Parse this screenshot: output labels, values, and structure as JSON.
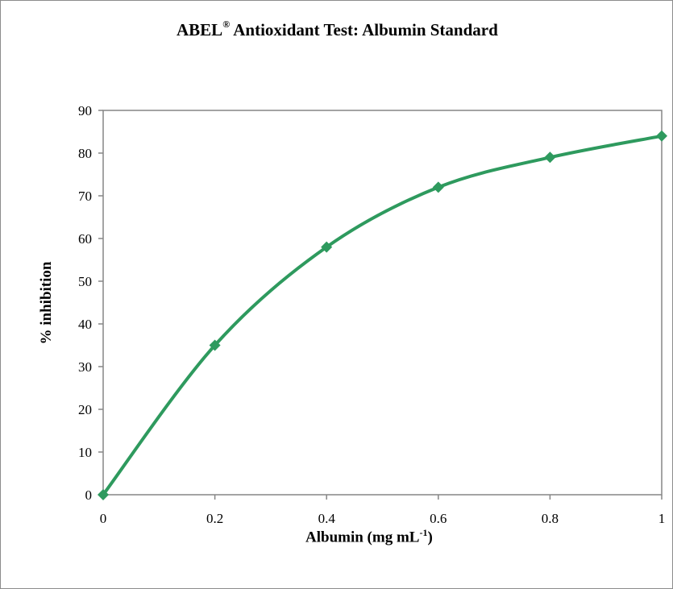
{
  "chart_data": {
    "type": "line",
    "title_main": "ABEL",
    "title_mark": "®",
    "title_rest": " Antioxidant Test: Albumin Standard",
    "xlabel_main": "Albumin (mg mL",
    "xlabel_sup": "-1",
    "xlabel_end": ")",
    "ylabel": "% inhibition",
    "x": [
      0,
      0.2,
      0.4,
      0.6,
      0.8,
      1
    ],
    "y": [
      0,
      35,
      58,
      72,
      79,
      84
    ],
    "xlim": [
      0,
      1
    ],
    "ylim": [
      0,
      90
    ],
    "xticks": [
      "0",
      "0.2",
      "0.4",
      "0.6",
      "0.8",
      "1"
    ],
    "yticks": [
      "0",
      "10",
      "20",
      "30",
      "40",
      "50",
      "60",
      "70",
      "80",
      "90"
    ],
    "series_color": "#2e9a5e",
    "grid": false,
    "legend": "none",
    "marker": "diamond",
    "smooth": true
  }
}
